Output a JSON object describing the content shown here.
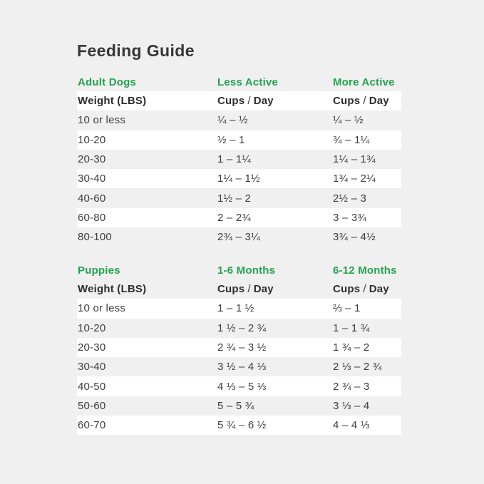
{
  "page": {
    "title": "Feeding Guide",
    "background_color": "#f0f0f1",
    "accent_green": "#23a24d"
  },
  "labels": {
    "weight_header": "Weight (LBS)",
    "cups": "Cups",
    "slash": "/",
    "day": "Day"
  },
  "sections": [
    {
      "header": "Adult Dogs",
      "col2_header": "Less Active",
      "col3_header": "More Active",
      "rows": [
        [
          "10 or less",
          "¼ – ½",
          "¼ – ½"
        ],
        [
          "10-20",
          "½ – 1",
          "¾ – 1¼"
        ],
        [
          "20-30",
          "1 – 1¼",
          "1¼ – 1¾"
        ],
        [
          "30-40",
          "1¼ – 1½",
          "1¾ – 2¼"
        ],
        [
          "40-60",
          "1½ – 2",
          "2½ – 3"
        ],
        [
          "60-80",
          "2 – 2¾",
          "3 – 3¾"
        ],
        [
          "80-100",
          "2¾ – 3¼",
          "3¾ – 4½"
        ]
      ]
    },
    {
      "header": "Puppies",
      "col2_header": "1-6 Months",
      "col3_header": "6-12 Months",
      "rows": [
        [
          "10 or less",
          "1 – 1 ½",
          "⅔ – 1"
        ],
        [
          "10-20",
          "1 ½ – 2 ¾",
          "1 – 1 ¾"
        ],
        [
          "20-30",
          "2 ¾ – 3 ½",
          "1 ¾ – 2"
        ],
        [
          "30-40",
          "3 ½ – 4 ⅓",
          "2 ⅓ – 2 ¾"
        ],
        [
          "40-50",
          "4 ⅓ – 5 ⅓",
          "2 ¾ – 3"
        ],
        [
          "50-60",
          "5 – 5 ¾",
          "3 ⅓ – 4"
        ],
        [
          "60-70",
          "5 ¾ – 6 ½",
          "4 – 4 ⅓"
        ]
      ]
    }
  ]
}
